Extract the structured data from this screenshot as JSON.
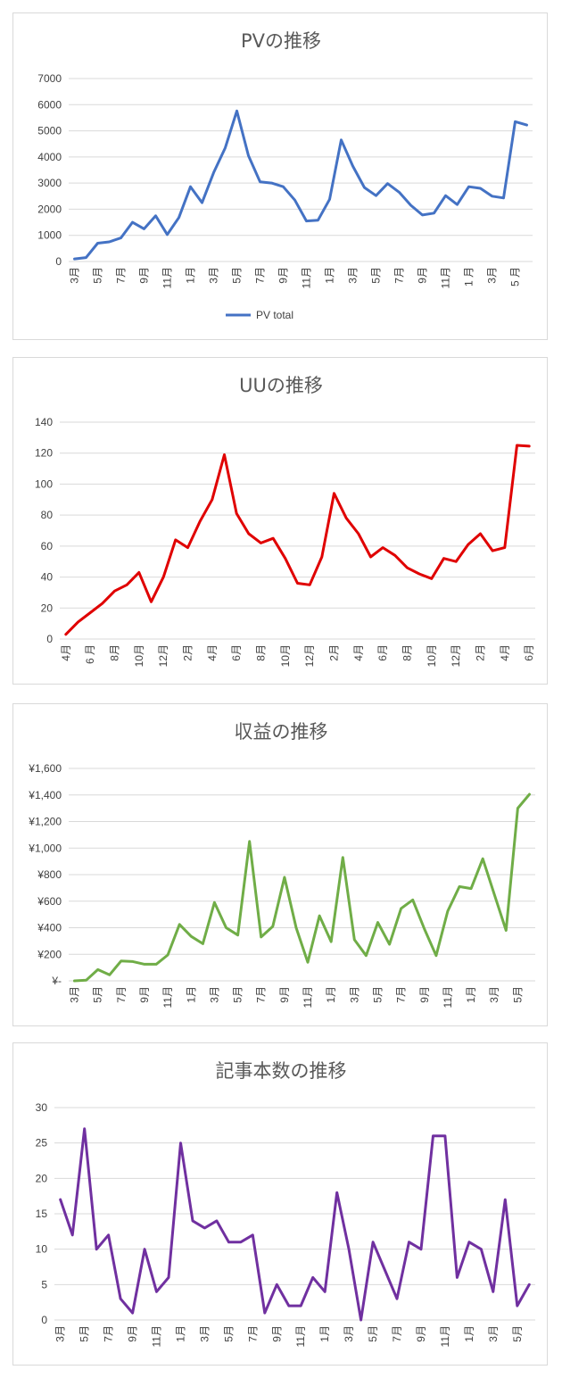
{
  "chart_data": [
    {
      "type": "line",
      "title": "PVの推移",
      "legend": "bottom",
      "grid": true,
      "ylim": [
        0,
        7000
      ],
      "yticks": [
        "0",
        "1000",
        "2000",
        "3000",
        "4000",
        "5000",
        "6000",
        "7000"
      ],
      "categories": [
        "3月",
        "4月",
        "5月",
        "6月",
        "7月",
        "8月",
        "9月",
        "10月",
        "11月",
        "12月",
        "1月",
        "2月",
        "3月",
        "4月",
        "5月",
        "6月",
        "7月",
        "8月",
        "9月",
        "10月",
        "11月",
        "12月",
        "1月",
        "2月",
        "3月",
        "4月",
        "5月",
        "6月",
        "7月",
        "8月",
        "9月",
        "10月",
        "11月",
        "12月",
        "1 月",
        "2月",
        "3月",
        "4月",
        "5 月",
        "6月"
      ],
      "tick_labels": [
        "3月",
        "",
        "5月",
        "",
        "7月",
        "",
        "9月",
        "",
        "11月",
        "",
        "1月",
        "",
        "3月",
        "",
        "5月",
        "",
        "7月",
        "",
        "9月",
        "",
        "11月",
        "",
        "1月",
        "",
        "3月",
        "",
        "5月",
        "",
        "7月",
        "",
        "9月",
        "",
        "11月",
        "",
        "1 月",
        "",
        "3月",
        "",
        "5 月",
        ""
      ],
      "series": [
        {
          "name": "PV total",
          "color": "#4472c4",
          "values": [
            100,
            150,
            700,
            750,
            900,
            1500,
            1250,
            1750,
            1030,
            1680,
            2860,
            2250,
            3400,
            4350,
            5760,
            4050,
            3050,
            3000,
            2860,
            2350,
            1550,
            1580,
            2380,
            4650,
            3650,
            2830,
            2520,
            2980,
            2650,
            2150,
            1780,
            1850,
            2520,
            2180,
            2860,
            2800,
            2500,
            2430,
            5350,
            5220
          ]
        }
      ]
    },
    {
      "type": "line",
      "title": "UUの推移",
      "grid": true,
      "ylim": [
        0,
        140
      ],
      "yticks": [
        "0",
        "20",
        "40",
        "60",
        "80",
        "100",
        "120",
        "140"
      ],
      "categories": [
        "4月",
        "5月",
        "6 月",
        "7月",
        "8月",
        "9月",
        "10月",
        "11月",
        "12月",
        "1月",
        "2月",
        "3月",
        "4月",
        "5月",
        "6月",
        "7月",
        "8月",
        "9月",
        "10月",
        "11月",
        "12月",
        "1月",
        "2月",
        "3月",
        "4月",
        "5月",
        "6月",
        "7月",
        "8月",
        "9月",
        "10月",
        "11月",
        "12月",
        "1月",
        "2月",
        "3月",
        "4月",
        "5月",
        "6月"
      ],
      "tick_labels": [
        "4月",
        "",
        "6 月",
        "",
        "8月",
        "",
        "10月",
        "",
        "12月",
        "",
        "2月",
        "",
        "4月",
        "",
        "6月",
        "",
        "8月",
        "",
        "10月",
        "",
        "12月",
        "",
        "2月",
        "",
        "4月",
        "",
        "6月",
        "",
        "8月",
        "",
        "10月",
        "",
        "12月",
        "",
        "2月",
        "",
        "4月",
        "",
        "6月"
      ],
      "series": [
        {
          "name": "UU",
          "color": "#e00000",
          "values": [
            3,
            11,
            17,
            23,
            31,
            35,
            43,
            24,
            40,
            64,
            59,
            76,
            90,
            119,
            81,
            68,
            62,
            65,
            52,
            36,
            35,
            53,
            94,
            78,
            68,
            53,
            59,
            54,
            46,
            42,
            39,
            52,
            50,
            61,
            68,
            57,
            59,
            125,
            124.5
          ]
        }
      ]
    },
    {
      "type": "line",
      "title": "収益の推移",
      "grid": true,
      "ylim": [
        0,
        1600
      ],
      "yticks": [
        "¥-",
        "¥200",
        "¥400",
        "¥600",
        "¥800",
        "¥1,000",
        "¥1,200",
        "¥1,400",
        "¥1,600"
      ],
      "categories": [
        "3月",
        "4月",
        "5月",
        "6月",
        "7月",
        "8月",
        "9月",
        "10月",
        "11月",
        "12月",
        "1月",
        "2月",
        "3月",
        "4月",
        "5月",
        "6月",
        "7月",
        "8月",
        "9月",
        "10月",
        "11月",
        "12月",
        "1月",
        "2月",
        "3月",
        "4月",
        "5月",
        "6月",
        "7月",
        "8月",
        "9月",
        "10月",
        "11月",
        "12月",
        "1月",
        "2月",
        "3月",
        "4月",
        "5月",
        "6月"
      ],
      "tick_labels": [
        "3月",
        "",
        "5月",
        "",
        "7月",
        "",
        "9月",
        "",
        "11月",
        "",
        "1月",
        "",
        "3月",
        "",
        "5月",
        "",
        "7月",
        "",
        "9月",
        "",
        "11月",
        "",
        "1月",
        "",
        "3月",
        "",
        "5月",
        "",
        "7月",
        "",
        "9月",
        "",
        "11月",
        "",
        "1月",
        "",
        "3月",
        "",
        "5月",
        ""
      ],
      "series": [
        {
          "name": "収益",
          "color": "#70ad47",
          "values": [
            0,
            5,
            85,
            45,
            150,
            145,
            125,
            125,
            195,
            425,
            335,
            280,
            590,
            400,
            345,
            1050,
            330,
            410,
            780,
            400,
            140,
            490,
            295,
            930,
            310,
            190,
            440,
            275,
            545,
            610,
            390,
            190,
            525,
            710,
            695,
            920,
            650,
            380,
            1300,
            1405
          ]
        }
      ]
    },
    {
      "type": "line",
      "title": "記事本数の推移",
      "grid": true,
      "ylim": [
        0,
        30
      ],
      "yticks": [
        "0",
        "5",
        "10",
        "15",
        "20",
        "25",
        "30"
      ],
      "categories": [
        "3月",
        "4月",
        "5月",
        "6月",
        "7月",
        "8月",
        "9月",
        "10月",
        "11月",
        "12月",
        "1月",
        "2月",
        "3月",
        "4月",
        "5月",
        "6月",
        "7月",
        "8月",
        "9月",
        "10月",
        "11月",
        "12月",
        "1月",
        "2月",
        "3月",
        "4月",
        "5月",
        "6月",
        "7月",
        "8月",
        "9月",
        "10月",
        "11月",
        "12月",
        "1月",
        "2月",
        "3月",
        "4月",
        "5月",
        "6月"
      ],
      "tick_labels": [
        "3月",
        "",
        "5月",
        "",
        "7月",
        "",
        "9月",
        "",
        "11月",
        "",
        "1月",
        "",
        "3月",
        "",
        "5月",
        "",
        "7月",
        "",
        "9月",
        "",
        "11月",
        "",
        "1月",
        "",
        "3月",
        "",
        "5月",
        "",
        "7月",
        "",
        "9月",
        "",
        "11月",
        "",
        "1月",
        "",
        "3月",
        "",
        "5月",
        ""
      ],
      "series": [
        {
          "name": "記事本数",
          "color": "#7030a0",
          "values": [
            17,
            12,
            27,
            10,
            12,
            3,
            1,
            10,
            4,
            6,
            25,
            14,
            13,
            14,
            11,
            11,
            12,
            1,
            5,
            2,
            2,
            6,
            4,
            18,
            10,
            0,
            11,
            7,
            3,
            11,
            10,
            26,
            26,
            6,
            11,
            10,
            4,
            17,
            2,
            5
          ]
        }
      ]
    }
  ]
}
